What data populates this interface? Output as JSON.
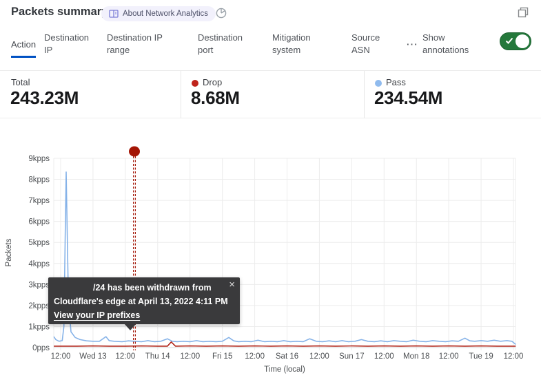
{
  "header": {
    "title": "Packets summary",
    "badge_label": "About Network Analytics"
  },
  "tabs": {
    "items": [
      {
        "label": "Action",
        "active": true
      },
      {
        "label": "Destination IP",
        "active": false
      },
      {
        "label": "Destination IP range",
        "active": false
      },
      {
        "label": "Destination port",
        "active": false
      },
      {
        "label": "Mitigation system",
        "active": false
      },
      {
        "label": "Source ASN",
        "active": false
      }
    ],
    "more": "⋯",
    "annotations_label": "Show annotations",
    "toggle_on": true,
    "active_underline_color": "#0051c3"
  },
  "stats": {
    "total": {
      "label": "Total",
      "value": "243.23M"
    },
    "drop": {
      "label": "Drop",
      "value": "8.68M",
      "dot_color": "#bf231b"
    },
    "pass": {
      "label": "Pass",
      "value": "234.54M",
      "dot_color": "#90bbee"
    }
  },
  "tooltip": {
    "line1": "/24 has been withdrawn from",
    "line2": "Cloudflare's edge at April 13, 2022 4:11 PM",
    "link": "View your IP prefixes",
    "close": "×"
  },
  "chart_data": {
    "type": "line",
    "title": "Packets summary",
    "xlabel": "Time (local)",
    "ylabel": "Packets",
    "x_tick_labels": [
      "12:00",
      "Wed 13",
      "12:00",
      "Thu 14",
      "12:00",
      "Fri 15",
      "12:00",
      "Sat 16",
      "12:00",
      "Sun 17",
      "12:00",
      "Mon 18",
      "12:00",
      "Tue 19",
      "12:00"
    ],
    "y_tick_labels": [
      "9kpps",
      "8kpps",
      "7kpps",
      "6kpps",
      "5kpps",
      "4kpps",
      "3kpps",
      "2kpps",
      "1kpps",
      "0pps"
    ],
    "ylim": [
      0,
      9
    ],
    "y_unit": "kpps",
    "x_domain_ticks": [
      -0.21,
      14.07
    ],
    "grid": true,
    "legend_position": "top-stats-row",
    "series": [
      {
        "name": "Pass",
        "color": "#85b2e8",
        "points": [
          [
            -0.21,
            0.52
          ],
          [
            -0.15,
            0.38
          ],
          [
            -0.05,
            0.3
          ],
          [
            0.05,
            0.33
          ],
          [
            0.1,
            1.0
          ],
          [
            0.17,
            8.35
          ],
          [
            0.24,
            2.2
          ],
          [
            0.32,
            0.75
          ],
          [
            0.45,
            0.48
          ],
          [
            0.6,
            0.38
          ],
          [
            0.8,
            0.32
          ],
          [
            1.0,
            0.3
          ],
          [
            1.2,
            0.3
          ],
          [
            1.4,
            0.52
          ],
          [
            1.5,
            0.33
          ],
          [
            1.65,
            0.3
          ],
          [
            1.9,
            0.28
          ],
          [
            2.1,
            0.32
          ],
          [
            2.28,
            0.3
          ],
          [
            2.5,
            0.28
          ],
          [
            2.7,
            0.33
          ],
          [
            2.9,
            0.28
          ],
          [
            3.1,
            0.3
          ],
          [
            3.3,
            0.42
          ],
          [
            3.45,
            0.3
          ],
          [
            3.6,
            0.28
          ],
          [
            3.8,
            0.3
          ],
          [
            4.0,
            0.28
          ],
          [
            4.2,
            0.33
          ],
          [
            4.4,
            0.28
          ],
          [
            4.6,
            0.3
          ],
          [
            4.8,
            0.28
          ],
          [
            5.0,
            0.3
          ],
          [
            5.2,
            0.48
          ],
          [
            5.35,
            0.32
          ],
          [
            5.5,
            0.28
          ],
          [
            5.7,
            0.3
          ],
          [
            5.9,
            0.28
          ],
          [
            6.1,
            0.35
          ],
          [
            6.3,
            0.28
          ],
          [
            6.5,
            0.3
          ],
          [
            6.7,
            0.28
          ],
          [
            6.9,
            0.33
          ],
          [
            7.1,
            0.28
          ],
          [
            7.3,
            0.3
          ],
          [
            7.5,
            0.28
          ],
          [
            7.7,
            0.42
          ],
          [
            7.9,
            0.3
          ],
          [
            8.1,
            0.28
          ],
          [
            8.3,
            0.32
          ],
          [
            8.5,
            0.28
          ],
          [
            8.7,
            0.33
          ],
          [
            8.9,
            0.28
          ],
          [
            9.1,
            0.3
          ],
          [
            9.3,
            0.38
          ],
          [
            9.5,
            0.3
          ],
          [
            9.7,
            0.28
          ],
          [
            9.9,
            0.32
          ],
          [
            10.1,
            0.28
          ],
          [
            10.3,
            0.33
          ],
          [
            10.5,
            0.3
          ],
          [
            10.7,
            0.28
          ],
          [
            10.9,
            0.35
          ],
          [
            11.1,
            0.3
          ],
          [
            11.3,
            0.28
          ],
          [
            11.5,
            0.33
          ],
          [
            11.7,
            0.3
          ],
          [
            11.9,
            0.28
          ],
          [
            12.1,
            0.32
          ],
          [
            12.3,
            0.3
          ],
          [
            12.5,
            0.45
          ],
          [
            12.65,
            0.32
          ],
          [
            12.8,
            0.3
          ],
          [
            13.0,
            0.33
          ],
          [
            13.2,
            0.3
          ],
          [
            13.4,
            0.35
          ],
          [
            13.6,
            0.3
          ],
          [
            13.8,
            0.33
          ],
          [
            13.95,
            0.3
          ],
          [
            14.07,
            0.15
          ]
        ]
      },
      {
        "name": "Drop",
        "color": "#b0251a",
        "points": [
          [
            -0.21,
            0.07
          ],
          [
            0.5,
            0.07
          ],
          [
            1.0,
            0.08
          ],
          [
            1.5,
            0.07
          ],
          [
            2.0,
            0.07
          ],
          [
            2.5,
            0.08
          ],
          [
            3.0,
            0.07
          ],
          [
            3.3,
            0.07
          ],
          [
            3.42,
            0.27
          ],
          [
            3.55,
            0.07
          ],
          [
            4.0,
            0.08
          ],
          [
            4.5,
            0.07
          ],
          [
            5.0,
            0.08
          ],
          [
            5.5,
            0.07
          ],
          [
            6.0,
            0.08
          ],
          [
            6.5,
            0.07
          ],
          [
            7.0,
            0.08
          ],
          [
            7.5,
            0.07
          ],
          [
            8.0,
            0.08
          ],
          [
            8.5,
            0.07
          ],
          [
            9.0,
            0.08
          ],
          [
            9.5,
            0.07
          ],
          [
            10.0,
            0.08
          ],
          [
            10.5,
            0.07
          ],
          [
            11.0,
            0.08
          ],
          [
            11.5,
            0.07
          ],
          [
            12.0,
            0.08
          ],
          [
            12.5,
            0.07
          ],
          [
            13.0,
            0.08
          ],
          [
            13.5,
            0.07
          ],
          [
            14.07,
            0.07
          ]
        ]
      }
    ],
    "annotation": {
      "x_tick": 2.28,
      "color": "#a41505",
      "style": "double-dashed-vertical-line-with-dot",
      "label": "/24 has been withdrawn from Cloudflare's edge at April 13, 2022 4:11 PM"
    }
  }
}
